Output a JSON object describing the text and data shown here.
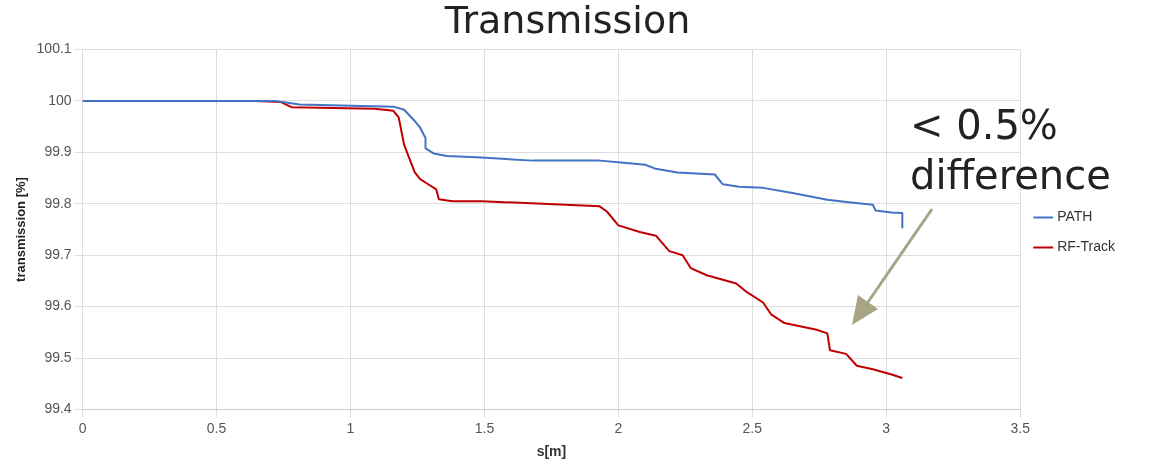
{
  "chart_data": {
    "type": "line",
    "title": "Transmission",
    "xlabel": "s[m]",
    "ylabel": "transmission [%]",
    "annotations": [
      "< 0.5%\ndifference"
    ],
    "xlim": [
      0,
      3.5
    ],
    "xticks": [
      0,
      0.5,
      1,
      1.5,
      2,
      2.5,
      3,
      3.5
    ],
    "ylim": [
      99.4,
      100.1
    ],
    "yticks": [
      99.4,
      99.5,
      99.6,
      99.7,
      99.8,
      99.9,
      100,
      100.1
    ],
    "grid": true,
    "legend": "right",
    "marker": "none",
    "line_style": "solid",
    "series": [
      {
        "name": "PATH",
        "color": "#4472c4",
        "x": [
          0,
          0.72,
          0.81,
          1.16,
          1.2,
          1.24,
          1.26,
          1.28,
          1.28,
          1.31,
          1.36,
          1.49,
          1.68,
          1.93,
          2.0,
          2.1,
          2.14,
          2.22,
          2.36,
          2.39,
          2.45,
          2.54,
          2.65,
          2.78,
          2.86,
          2.95,
          2.96,
          3.02,
          3.06,
          3.06
        ],
        "values": [
          100,
          100,
          99.993,
          99.989,
          99.983,
          99.961,
          99.948,
          99.928,
          99.908,
          99.898,
          99.893,
          99.89,
          99.884,
          99.884,
          99.881,
          99.876,
          99.868,
          99.861,
          99.857,
          99.838,
          99.833,
          99.831,
          99.821,
          99.808,
          99.803,
          99.798,
          99.787,
          99.783,
          99.782,
          99.754
        ]
      },
      {
        "name": "RF-Track",
        "color": "#c00000",
        "x": [
          0,
          0.64,
          0.74,
          0.78,
          1.09,
          1.16,
          1.18,
          1.2,
          1.22,
          1.24,
          1.26,
          1.29,
          1.32,
          1.33,
          1.38,
          1.49,
          1.76,
          1.93,
          1.957,
          2.0,
          2.08,
          2.14,
          2.19,
          2.24,
          2.27,
          2.33,
          2.44,
          2.48,
          2.54,
          2.57,
          2.62,
          2.74,
          2.78,
          2.79,
          2.85,
          2.89,
          2.95,
          3.02,
          3.06
        ],
        "values": [
          100,
          100,
          99.998,
          99.988,
          99.985,
          99.981,
          99.968,
          99.915,
          99.888,
          99.861,
          99.848,
          99.838,
          99.828,
          99.809,
          99.805,
          99.805,
          99.799,
          99.795,
          99.785,
          99.758,
          99.745,
          99.738,
          99.708,
          99.7,
          99.675,
          99.661,
          99.645,
          99.628,
          99.608,
          99.585,
          99.568,
          99.555,
          99.548,
          99.515,
          99.508,
          99.485,
          99.478,
          99.468,
          99.461
        ]
      }
    ]
  }
}
